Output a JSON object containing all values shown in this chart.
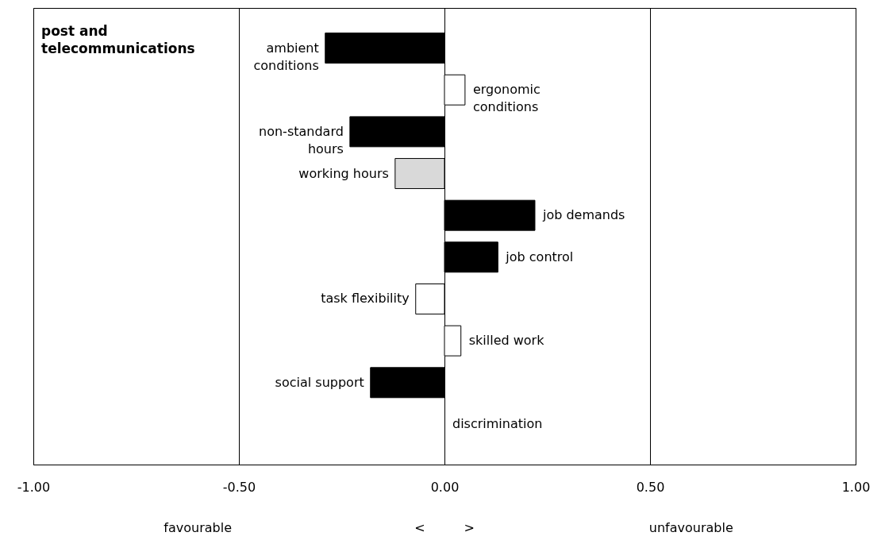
{
  "chart_data": {
    "type": "bar",
    "orientation": "horizontal",
    "title": "post and telecommunications",
    "categories": [
      "ambient conditions",
      "ergonomic conditions",
      "non-standard hours",
      "working hours",
      "job demands",
      "job control",
      "task flexibility",
      "skilled work",
      "social support",
      "discrimination"
    ],
    "values": [
      -0.29,
      0.05,
      -0.23,
      -0.12,
      0.22,
      0.13,
      -0.07,
      0.04,
      -0.18,
      0
    ],
    "colors": [
      "#000000",
      "#ffffff",
      "#000000",
      "#d9d9d9",
      "#000000",
      "#000000",
      "#ffffff",
      "#ffffff",
      "#000000",
      "#ffffff"
    ],
    "xlim": [
      -1,
      1
    ],
    "xticks": [
      {
        "value": -1,
        "label": "-1.00"
      },
      {
        "value": -0.5,
        "label": "-0.50"
      },
      {
        "value": 0,
        "label": "0.00"
      },
      {
        "value": 0.5,
        "label": "0.50"
      },
      {
        "value": 1,
        "label": "1.00"
      }
    ],
    "grid": "x",
    "annotations": [
      "favourable",
      "<",
      ">",
      "unfavourable"
    ]
  }
}
